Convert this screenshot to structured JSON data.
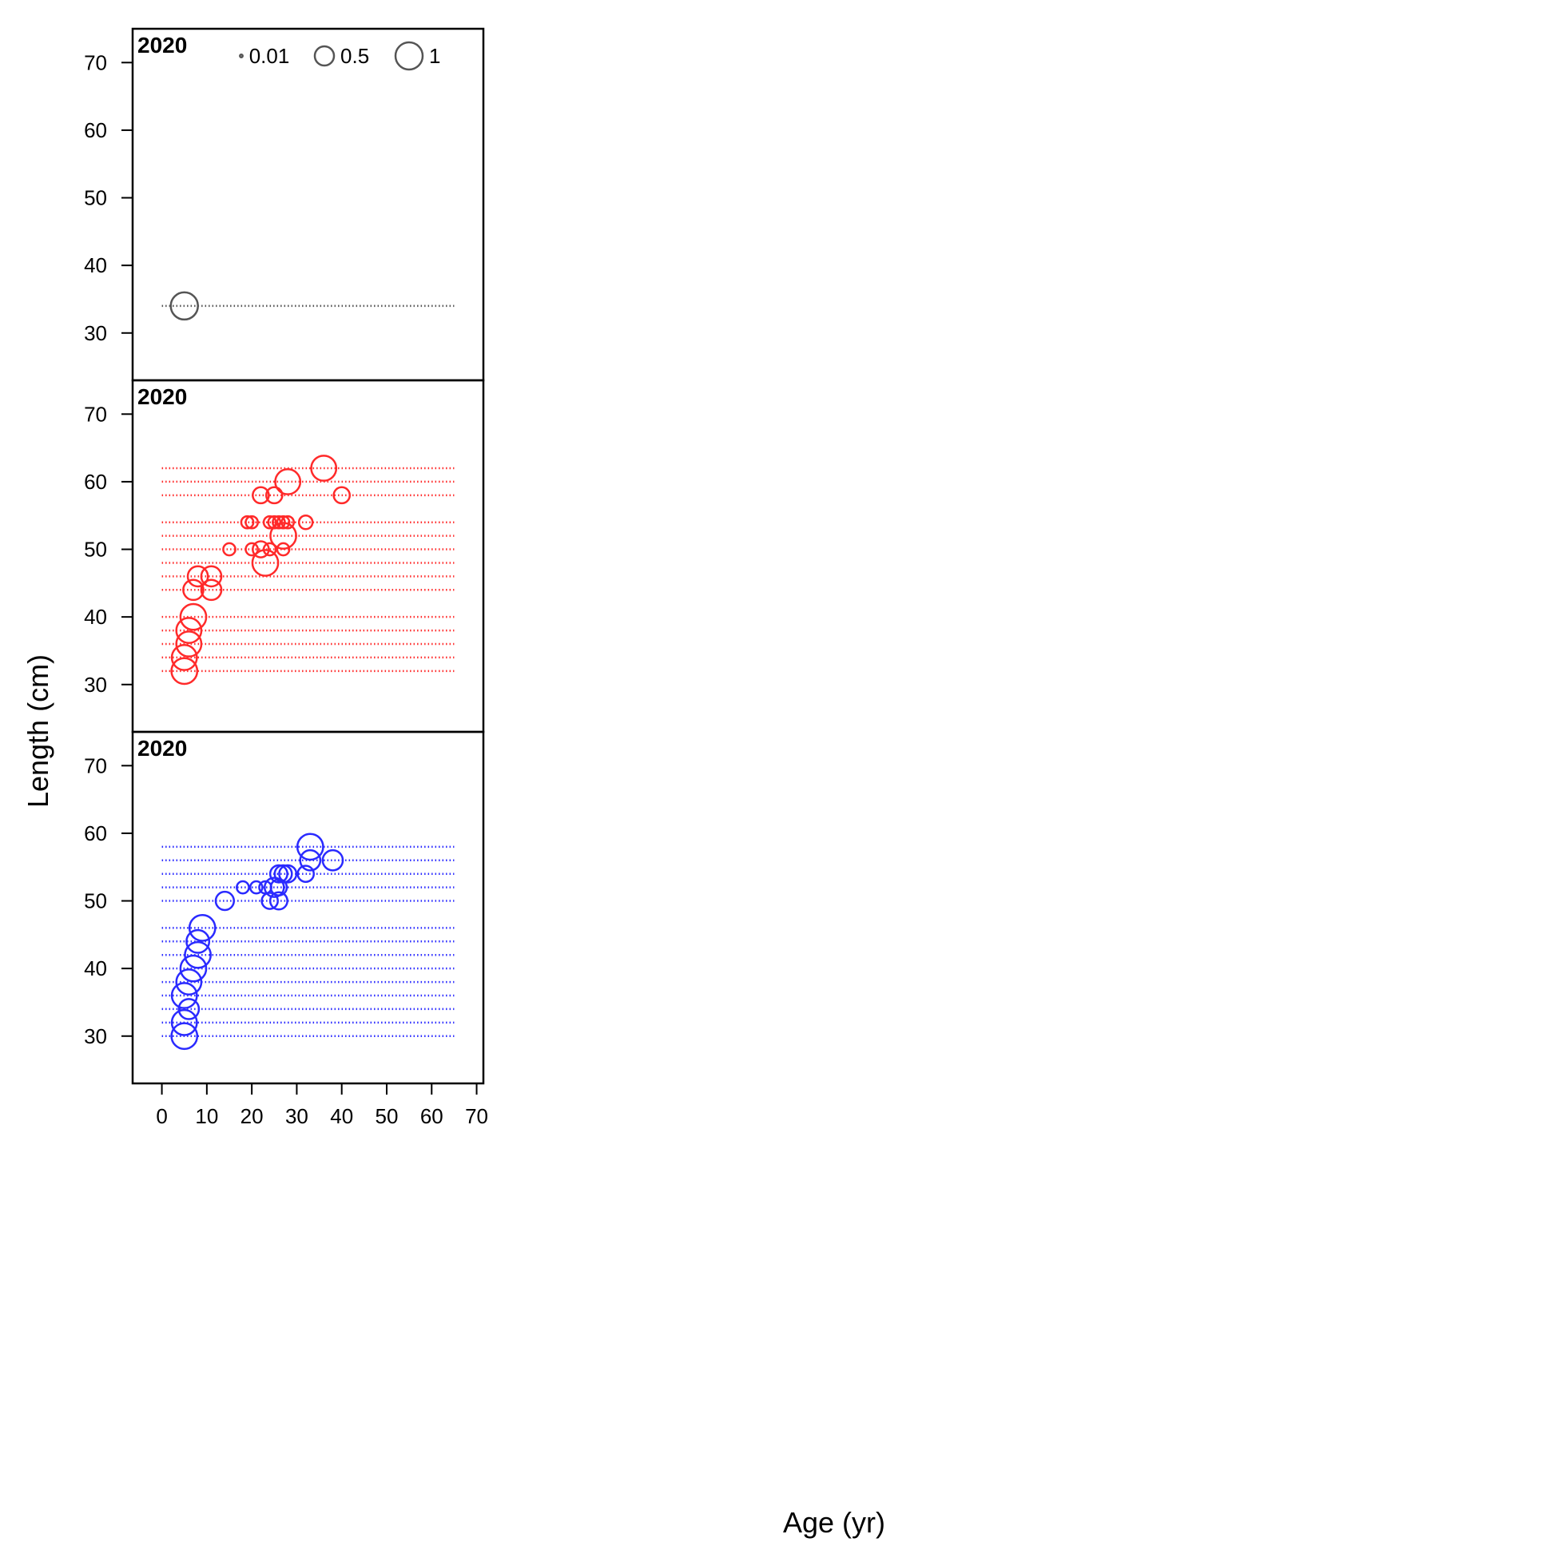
{
  "figure": {
    "xlabel": "Age (yr)",
    "ylabel": "Length (cm)"
  },
  "legend": {
    "labels": [
      "0.01",
      "0.5",
      "1"
    ],
    "values": [
      0.01,
      0.5,
      1
    ]
  },
  "chart_data": [
    {
      "type": "scatter",
      "panel_label": "2020",
      "color": "#555555",
      "xlim": [
        -6.5,
        71.5
      ],
      "ylim": [
        23,
        75
      ],
      "xticks": [
        0,
        10,
        20,
        30,
        40,
        50,
        60,
        70
      ],
      "yticks": [
        30,
        40,
        50,
        60,
        70
      ],
      "x_axis_visible": false,
      "length_bins": [
        34
      ],
      "points": [
        {
          "x": 5,
          "y": 34,
          "size": 1.0
        }
      ]
    },
    {
      "type": "scatter",
      "panel_label": "2020",
      "color": "#ff2a2a",
      "xlim": [
        -6.5,
        71.5
      ],
      "ylim": [
        23,
        75
      ],
      "xticks": [
        0,
        10,
        20,
        30,
        40,
        50,
        60,
        70
      ],
      "yticks": [
        30,
        40,
        50,
        60,
        70
      ],
      "x_axis_visible": false,
      "length_bins": [
        32,
        34,
        36,
        38,
        40,
        44,
        46,
        48,
        50,
        52,
        54,
        58,
        60,
        62
      ],
      "points": [
        {
          "x": 5,
          "y": 32,
          "size": 0.9
        },
        {
          "x": 5,
          "y": 34,
          "size": 0.85
        },
        {
          "x": 6,
          "y": 36,
          "size": 0.85
        },
        {
          "x": 6,
          "y": 38,
          "size": 0.85
        },
        {
          "x": 7,
          "y": 40,
          "size": 0.9
        },
        {
          "x": 7,
          "y": 44,
          "size": 0.55
        },
        {
          "x": 8,
          "y": 46,
          "size": 0.55
        },
        {
          "x": 11,
          "y": 44,
          "size": 0.55
        },
        {
          "x": 11,
          "y": 46,
          "size": 0.55
        },
        {
          "x": 23,
          "y": 48,
          "size": 0.9
        },
        {
          "x": 15,
          "y": 50,
          "size": 0.2
        },
        {
          "x": 20,
          "y": 50,
          "size": 0.2
        },
        {
          "x": 22,
          "y": 50,
          "size": 0.35
        },
        {
          "x": 24,
          "y": 50,
          "size": 0.2
        },
        {
          "x": 27,
          "y": 50,
          "size": 0.2
        },
        {
          "x": 27,
          "y": 52,
          "size": 0.9
        },
        {
          "x": 19,
          "y": 54,
          "size": 0.2
        },
        {
          "x": 20,
          "y": 54,
          "size": 0.2
        },
        {
          "x": 24,
          "y": 54,
          "size": 0.2
        },
        {
          "x": 25,
          "y": 54,
          "size": 0.2
        },
        {
          "x": 26,
          "y": 54,
          "size": 0.2
        },
        {
          "x": 27,
          "y": 54,
          "size": 0.2
        },
        {
          "x": 28,
          "y": 54,
          "size": 0.2
        },
        {
          "x": 32,
          "y": 54,
          "size": 0.25
        },
        {
          "x": 22,
          "y": 58,
          "size": 0.35
        },
        {
          "x": 25,
          "y": 58,
          "size": 0.35
        },
        {
          "x": 40,
          "y": 58,
          "size": 0.35
        },
        {
          "x": 28,
          "y": 60,
          "size": 0.85
        },
        {
          "x": 36,
          "y": 62,
          "size": 0.85
        }
      ]
    },
    {
      "type": "scatter",
      "panel_label": "2020",
      "color": "#2a2aff",
      "xlim": [
        -6.5,
        71.5
      ],
      "ylim": [
        23,
        75
      ],
      "xticks": [
        0,
        10,
        20,
        30,
        40,
        50,
        60,
        70
      ],
      "yticks": [
        30,
        40,
        50,
        60,
        70
      ],
      "x_axis_visible": true,
      "length_bins": [
        30,
        32,
        34,
        36,
        38,
        40,
        42,
        44,
        46,
        50,
        52,
        54,
        56,
        58
      ],
      "points": [
        {
          "x": 5,
          "y": 30,
          "size": 0.9
        },
        {
          "x": 5,
          "y": 32,
          "size": 0.85
        },
        {
          "x": 6,
          "y": 34,
          "size": 0.55
        },
        {
          "x": 5,
          "y": 36,
          "size": 0.85
        },
        {
          "x": 6,
          "y": 38,
          "size": 0.85
        },
        {
          "x": 7,
          "y": 40,
          "size": 0.9
        },
        {
          "x": 8,
          "y": 42,
          "size": 0.9
        },
        {
          "x": 8,
          "y": 44,
          "size": 0.7
        },
        {
          "x": 9,
          "y": 46,
          "size": 0.9
        },
        {
          "x": 14,
          "y": 50,
          "size": 0.45
        },
        {
          "x": 24,
          "y": 50,
          "size": 0.35
        },
        {
          "x": 26,
          "y": 50,
          "size": 0.4
        },
        {
          "x": 18,
          "y": 52,
          "size": 0.2
        },
        {
          "x": 21,
          "y": 52,
          "size": 0.2
        },
        {
          "x": 23,
          "y": 52,
          "size": 0.2
        },
        {
          "x": 25,
          "y": 52,
          "size": 0.5
        },
        {
          "x": 26,
          "y": 52,
          "size": 0.35
        },
        {
          "x": 26,
          "y": 54,
          "size": 0.4
        },
        {
          "x": 27,
          "y": 54,
          "size": 0.4
        },
        {
          "x": 28,
          "y": 54,
          "size": 0.4
        },
        {
          "x": 32,
          "y": 54,
          "size": 0.35
        },
        {
          "x": 33,
          "y": 56,
          "size": 0.55
        },
        {
          "x": 38,
          "y": 56,
          "size": 0.55
        },
        {
          "x": 33,
          "y": 58,
          "size": 0.9
        }
      ]
    }
  ]
}
